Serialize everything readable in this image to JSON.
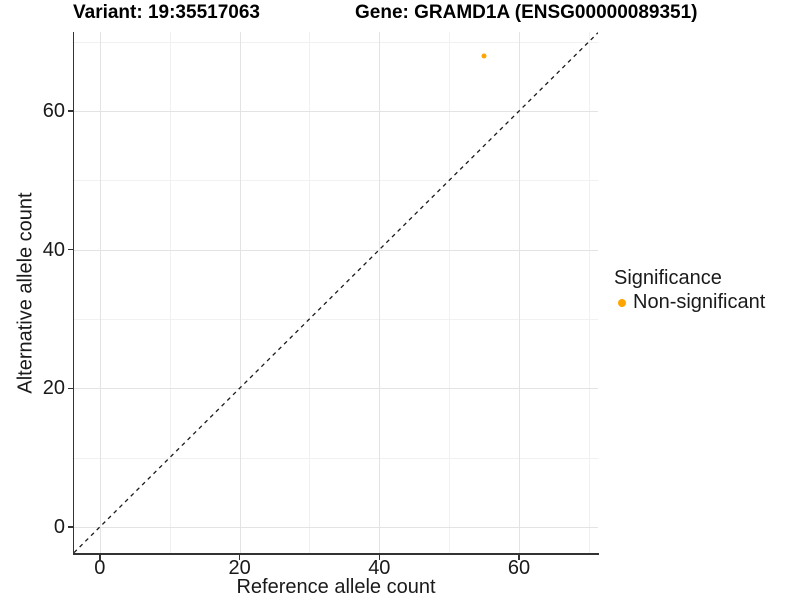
{
  "figure": {
    "titles": {
      "variant": "Variant: 19:35517063",
      "gene": "Gene: GRAMD1A (ENSG00000089351)"
    }
  },
  "legend": {
    "title": "Significance",
    "items": [
      {
        "label": "Non-significant",
        "color": "#FFA500"
      }
    ]
  },
  "colors": {
    "background": "#FFFFFF",
    "axis_line": "#333333",
    "grid_major": "#E3E3E3",
    "grid_minor": "#F1F1F1",
    "text": "#1A1A1A",
    "title_text": "#000000",
    "point": "#FFA500",
    "reference_line": "#1A1A1A"
  },
  "chart_data": {
    "type": "scatter",
    "title": "Variant: 19:35517063   Gene: GRAMD1A (ENSG00000089351)",
    "xlabel": "Reference allele count",
    "ylabel": "Alternative allele count",
    "xlim": [
      -3.7,
      71.3
    ],
    "ylim": [
      -3.9,
      71.4
    ],
    "x_ticks": [
      0,
      20,
      40,
      60
    ],
    "y_ticks": [
      0,
      20,
      40,
      60
    ],
    "x_minor_ticks": [
      10,
      30,
      50,
      70
    ],
    "y_minor_ticks": [
      10,
      30,
      50,
      70
    ],
    "grid": true,
    "legend_position": "right-center",
    "legend_title": "Significance",
    "series": [
      {
        "name": "Non-significant",
        "color": "#FFA500",
        "points": [
          {
            "x": 55,
            "y": 68
          }
        ]
      }
    ],
    "reference_line": {
      "kind": "identity y=x",
      "style": "dashed",
      "color": "#1A1A1A"
    }
  }
}
